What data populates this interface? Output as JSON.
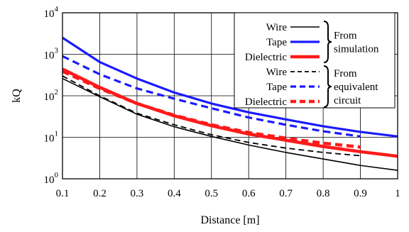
{
  "chart_data": {
    "type": "line",
    "xlabel": "Distance [m]",
    "ylabel": "kQ",
    "xlim": [
      0.1,
      1.0
    ],
    "ylim": [
      1,
      10000
    ],
    "y_scale": "log",
    "grid": true,
    "legend_position": "top-right",
    "x_ticks": [
      "0.1",
      "0.2",
      "0.3",
      "0.4",
      "0.5",
      "0.6",
      "0.7",
      "0.8",
      "0.9",
      "1"
    ],
    "y_ticks": [
      {
        "value": 1,
        "base": "10",
        "exp": "0"
      },
      {
        "value": 10,
        "base": "10",
        "exp": "1"
      },
      {
        "value": 100,
        "base": "10",
        "exp": "2"
      },
      {
        "value": 1000,
        "base": "10",
        "exp": "3"
      },
      {
        "value": 10000,
        "base": "10",
        "exp": "4"
      }
    ],
    "legend_groups": [
      {
        "label_lines": [
          "From",
          "simulation"
        ],
        "entries": [
          "Wire",
          "Tape",
          "Dielectric"
        ]
      },
      {
        "label_lines": [
          "From",
          "equivalent",
          "circuit"
        ],
        "entries": [
          "Wire",
          "Tape",
          "Dielectric"
        ]
      }
    ],
    "series": [
      {
        "name": "Wire",
        "group": "From simulation",
        "color": "#000000",
        "dashed": false,
        "width": 1.6,
        "x": [
          0.1,
          0.2,
          0.3,
          0.4,
          0.5,
          0.6,
          0.7,
          0.8,
          0.9,
          1.0
        ],
        "y": [
          260,
          95,
          36,
          18,
          10.5,
          6.5,
          4.3,
          3.0,
          2.1,
          1.6
        ]
      },
      {
        "name": "Tape",
        "group": "From simulation",
        "color": "#1a1aff",
        "dashed": false,
        "width": 3.2,
        "x": [
          0.1,
          0.2,
          0.3,
          0.4,
          0.5,
          0.6,
          0.7,
          0.8,
          0.9,
          1.0
        ],
        "y": [
          2500,
          650,
          260,
          120,
          65,
          40,
          27,
          18.5,
          13.5,
          10.5
        ]
      },
      {
        "name": "Dielectric",
        "group": "From simulation",
        "color": "#ff1a1a",
        "dashed": false,
        "width": 4.5,
        "x": [
          0.1,
          0.2,
          0.3,
          0.4,
          0.5,
          0.6,
          0.7,
          0.8,
          0.9,
          1.0
        ],
        "y": [
          440,
          160,
          65,
          33,
          19,
          12,
          8.5,
          6,
          4.5,
          3.5
        ]
      },
      {
        "name": "Wire",
        "group": "From equivalent circuit",
        "color": "#000000",
        "dashed": true,
        "width": 1.8,
        "x": [
          0.1,
          0.2,
          0.3,
          0.4,
          0.5,
          0.6,
          0.7,
          0.8,
          0.9
        ],
        "y": [
          300,
          100,
          38,
          20,
          11.5,
          7.5,
          5.5,
          4.3,
          3.6
        ]
      },
      {
        "name": "Tape",
        "group": "From equivalent circuit",
        "color": "#1a1aff",
        "dashed": true,
        "width": 3.2,
        "x": [
          0.1,
          0.2,
          0.3,
          0.4,
          0.5,
          0.6,
          0.7,
          0.8,
          0.9
        ],
        "y": [
          900,
          330,
          150,
          85,
          50,
          30,
          20,
          14,
          10.5
        ]
      },
      {
        "name": "Dielectric",
        "group": "From equivalent circuit",
        "color": "#ff1a1a",
        "dashed": true,
        "width": 4.5,
        "x": [
          0.1,
          0.2,
          0.3,
          0.4,
          0.5,
          0.6,
          0.7,
          0.8,
          0.9
        ],
        "y": [
          390,
          150,
          65,
          34,
          20,
          13,
          9.5,
          7.2,
          5.8
        ]
      }
    ]
  }
}
